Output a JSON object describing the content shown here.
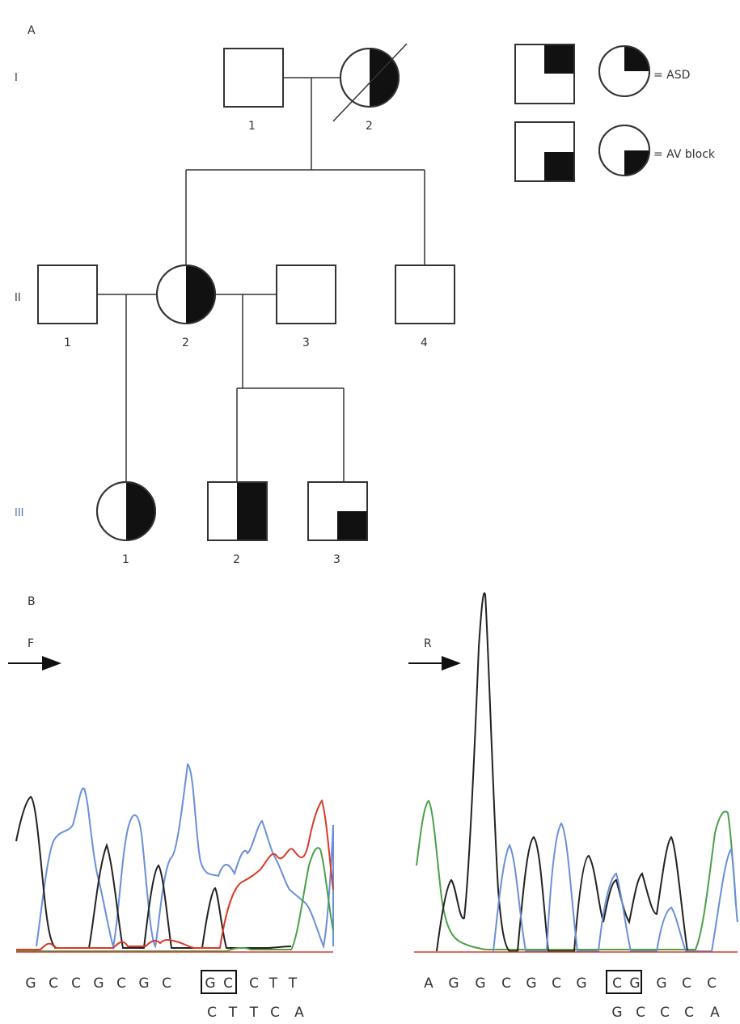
{
  "panel_a": {
    "label": "A",
    "generations": [
      "I",
      "II",
      "III"
    ],
    "individuals": {
      "I": [
        "1",
        "2"
      ],
      "II": [
        "1",
        "2",
        "3",
        "4"
      ],
      "III": [
        "1",
        "2",
        "3"
      ]
    },
    "legend": [
      {
        "label": "= ASD",
        "marker": "upper-right-quadrant-filled"
      },
      {
        "label": "= AV block",
        "marker": "lower-right-quadrant-filled"
      }
    ],
    "colors": {
      "generation_III_label": "#5a6fb0"
    }
  },
  "panel_b": {
    "label": "B",
    "forward": {
      "primer_label": "F",
      "top_bases": [
        "G",
        "C",
        "C",
        "G",
        "C",
        "G",
        "C",
        "G",
        "C",
        "C",
        "T",
        "T"
      ],
      "boxed_bases": [
        "G",
        "C"
      ],
      "bottom_bases": [
        "C",
        "T",
        "T",
        "C",
        "A"
      ]
    },
    "reverse": {
      "primer_label": "R",
      "top_bases": [
        "A",
        "G",
        "G",
        "C",
        "G",
        "C",
        "G",
        "C",
        "G",
        "G",
        "C",
        "C"
      ],
      "boxed_bases": [
        "C",
        "G"
      ],
      "bottom_bases": [
        "G",
        "C",
        "C",
        "C",
        "A"
      ]
    },
    "trace_colors": {
      "blue": "#6a8fd8",
      "black": "#222222",
      "red": "#d83a2a",
      "green": "#4aa04a"
    }
  }
}
